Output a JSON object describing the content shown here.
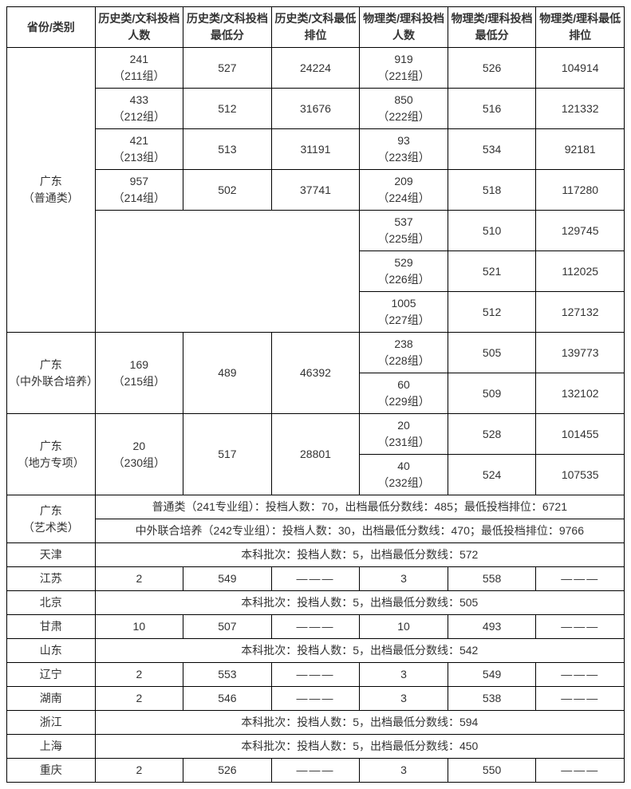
{
  "columns": [
    "省份/类别",
    "历史类/文科\n投档人数",
    "历史类/文科\n投档最低分",
    "历史类/文科\n最低排位",
    "物理类/理科\n投档人数",
    "物理类/理科\n投档最低分",
    "物理类/理科\n最低排位"
  ],
  "gd_common_label": "广东\n（普通类）",
  "gd_common_rows": [
    {
      "h_count": "241\n（211组）",
      "h_min": "527",
      "h_rank": "24224",
      "p_count": "919\n（221组）",
      "p_min": "526",
      "p_rank": "104914"
    },
    {
      "h_count": "433\n（212组）",
      "h_min": "512",
      "h_rank": "31676",
      "p_count": "850\n（222组）",
      "p_min": "516",
      "p_rank": "121332"
    },
    {
      "h_count": "421\n（213组）",
      "h_min": "513",
      "h_rank": "31191",
      "p_count": "93\n（223组）",
      "p_min": "534",
      "p_rank": "92181"
    },
    {
      "h_count": "957\n（214组）",
      "h_min": "502",
      "h_rank": "37741",
      "p_count": "209\n（224组）",
      "p_min": "518",
      "p_rank": "117280"
    },
    {
      "h_count": "",
      "h_min": "",
      "h_rank": "",
      "p_count": "537\n（225组）",
      "p_min": "510",
      "p_rank": "129745"
    },
    {
      "h_count": "",
      "h_min": "",
      "h_rank": "",
      "p_count": "529\n（226组）",
      "p_min": "521",
      "p_rank": "112025"
    },
    {
      "h_count": "",
      "h_min": "",
      "h_rank": "",
      "p_count": "1005\n（227组）",
      "p_min": "512",
      "p_rank": "127132"
    }
  ],
  "gd_joint_label": "广东\n（中外联合培养）",
  "gd_joint_hist": {
    "h_count": "169\n（215组）",
    "h_min": "489",
    "h_rank": "46392"
  },
  "gd_joint_phys": [
    {
      "p_count": "238\n（228组）",
      "p_min": "505",
      "p_rank": "139773"
    },
    {
      "p_count": "60\n（229组）",
      "p_min": "509",
      "p_rank": "132102"
    }
  ],
  "gd_local_label": "广东\n（地方专项）",
  "gd_local_hist": {
    "h_count": "20\n（230组）",
    "h_min": "517",
    "h_rank": "28801"
  },
  "gd_local_phys": [
    {
      "p_count": "20\n（231组）",
      "p_min": "528",
      "p_rank": "101455"
    },
    {
      "p_count": "40\n（232组）",
      "p_min": "524",
      "p_rank": "107535"
    }
  ],
  "gd_art_label": "广东\n（艺术类）",
  "gd_art_lines": [
    "普通类（241专业组）：投档人数：70，出档最低分数线：485；最低投档排位：6721",
    "中外联合培养（242专业组）：投档人数：30，出档最低分数线：470；最低投档排位：9766"
  ],
  "other_rows": [
    {
      "prov": "天津",
      "span_text": "本科批次：投档人数：5，出档最低分数线：572"
    },
    {
      "prov": "江苏",
      "h_count": "2",
      "h_min": "549",
      "h_rank": "———",
      "p_count": "3",
      "p_min": "558",
      "p_rank": "———"
    },
    {
      "prov": "北京",
      "span_text": "本科批次：投档人数：5，出档最低分数线：505"
    },
    {
      "prov": "甘肃",
      "h_count": "10",
      "h_min": "507",
      "h_rank": "———",
      "p_count": "10",
      "p_min": "493",
      "p_rank": "———"
    },
    {
      "prov": "山东",
      "span_text": "本科批次：投档人数：5，出档最低分数线：542"
    },
    {
      "prov": "辽宁",
      "h_count": "2",
      "h_min": "553",
      "h_rank": "———",
      "p_count": "3",
      "p_min": "549",
      "p_rank": "———"
    },
    {
      "prov": "湖南",
      "h_count": "2",
      "h_min": "546",
      "h_rank": "———",
      "p_count": "3",
      "p_min": "538",
      "p_rank": "———"
    },
    {
      "prov": "浙江",
      "span_text": "本科批次：投档人数：5，出档最低分数线：594"
    },
    {
      "prov": "上海",
      "span_text": "本科批次：投档人数：5，出档最低分数线：450"
    },
    {
      "prov": "重庆",
      "h_count": "2",
      "h_min": "526",
      "h_rank": "———",
      "p_count": "3",
      "p_min": "550",
      "p_rank": "———"
    }
  ]
}
